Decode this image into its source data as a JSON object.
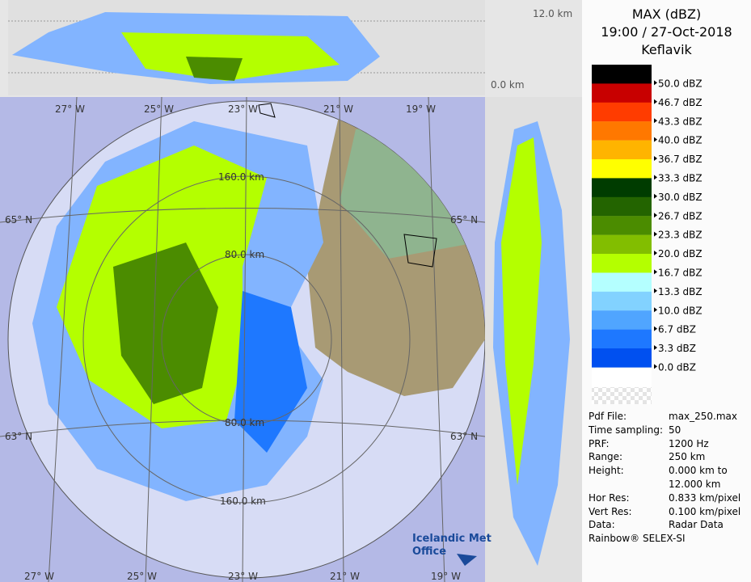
{
  "header": {
    "title": "MAX (dBZ)",
    "time": "19:00 / 27-Oct-2018",
    "site": "Keflavik"
  },
  "legend": {
    "levels": [
      {
        "label": "50.0 dBZ",
        "color": "#000000"
      },
      {
        "label": "46.7 dBZ",
        "color": "#c80000"
      },
      {
        "label": "43.3 dBZ",
        "color": "#ff3c00"
      },
      {
        "label": "40.0 dBZ",
        "color": "#ff7800"
      },
      {
        "label": "36.7 dBZ",
        "color": "#ffb400"
      },
      {
        "label": "33.3 dBZ",
        "color": "#ffff00"
      },
      {
        "label": "30.0 dBZ",
        "color": "#003c00"
      },
      {
        "label": "26.7 dBZ",
        "color": "#236400"
      },
      {
        "label": "23.3 dBZ",
        "color": "#4b8c00"
      },
      {
        "label": "20.0 dBZ",
        "color": "#82be00"
      },
      {
        "label": "16.7 dBZ",
        "color": "#b4ff00"
      },
      {
        "label": "13.3 dBZ",
        "color": "#b4ffff"
      },
      {
        "label": "10.0 dBZ",
        "color": "#82d2ff"
      },
      {
        "label": "6.7 dBZ",
        "color": "#50a5ff"
      },
      {
        "label": "3.3 dBZ",
        "color": "#1e78ff"
      },
      {
        "label": "0.0 dBZ",
        "color": "#0050f0"
      }
    ]
  },
  "map": {
    "lon_top": [
      "27° W",
      "25° W",
      "23° W",
      "21° W",
      "19° W"
    ],
    "lon_bottom": [
      "27° W",
      "25° W",
      "23° W",
      "21° W",
      "19° W"
    ],
    "lat_left": [
      "65° N",
      "63° N"
    ],
    "lat_right": [
      "65° N",
      "63° N"
    ],
    "ranges": [
      "160.0 km",
      "80.0 km",
      "80.0 km",
      "160.0 km"
    ]
  },
  "top_panel": {
    "top_label": "12.0 km",
    "bottom_label": "0.0 km"
  },
  "info": {
    "rows": [
      [
        "Pdf File:",
        "max_250.max"
      ],
      [
        "Time sampling:",
        "50"
      ],
      [
        "PRF:",
        "1200 Hz"
      ],
      [
        "Range:",
        "250 km"
      ],
      [
        "Height:",
        "0.000 km to"
      ],
      [
        "",
        "12.000 km"
      ],
      [
        "Hor Res:",
        "0.833 km/pixel"
      ],
      [
        "Vert Res:",
        "0.100 km/pixel"
      ],
      [
        "Data:",
        "Radar Data"
      ]
    ],
    "footer": "Rainbow® SELEX-SI"
  },
  "logo": {
    "line1": "Icelandic Met",
    "line2": "Office"
  }
}
